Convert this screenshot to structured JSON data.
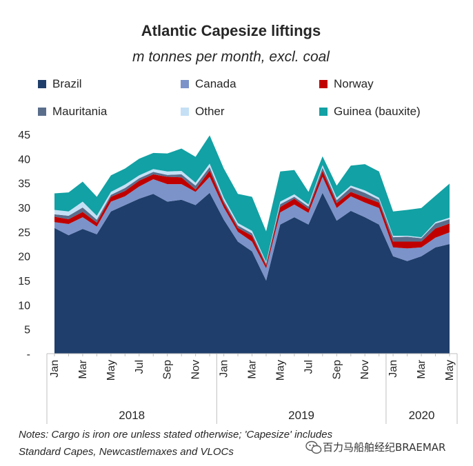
{
  "chart_data": {
    "type": "area",
    "stacked": true,
    "title": "Atlantic Capesize liftings",
    "subtitle": "m tonnes per month, excl. coal",
    "ylim": [
      0,
      45
    ],
    "yticks": [
      "-",
      "5",
      "10",
      "15",
      "20",
      "25",
      "30",
      "35",
      "40",
      "45"
    ],
    "x_tick_labels": [
      "Jan",
      "Mar",
      "May",
      "Jul",
      "Sep",
      "Nov",
      "Jan",
      "Mar",
      "May",
      "Jul",
      "Sep",
      "Nov",
      "Jan",
      "Mar",
      "May"
    ],
    "x_tick_months": [
      0,
      2,
      4,
      6,
      8,
      10,
      12,
      14,
      16,
      18,
      20,
      22,
      24,
      26,
      28
    ],
    "years": [
      {
        "label": "2018",
        "start": 0,
        "end": 12
      },
      {
        "label": "2019",
        "start": 12,
        "end": 24
      },
      {
        "label": "2020",
        "start": 24,
        "end": 29
      }
    ],
    "x": [
      "2018-01",
      "2018-02",
      "2018-03",
      "2018-04",
      "2018-05",
      "2018-06",
      "2018-07",
      "2018-08",
      "2018-09",
      "2018-10",
      "2018-11",
      "2018-12",
      "2019-01",
      "2019-02",
      "2019-03",
      "2019-04",
      "2019-05",
      "2019-06",
      "2019-07",
      "2019-08",
      "2019-09",
      "2019-10",
      "2019-11",
      "2019-12",
      "2020-01",
      "2020-02",
      "2020-03",
      "2020-04",
      "2020-05"
    ],
    "legend_position": "top",
    "series": [
      {
        "name": "Brazil",
        "color": "#1f3e6b",
        "values": [
          25.8,
          24.3,
          25.6,
          24.5,
          29.2,
          30.5,
          31.8,
          32.8,
          31.2,
          31.6,
          30.5,
          33.0,
          27.5,
          23.0,
          21.0,
          15.0,
          26.5,
          28.0,
          26.5,
          33.0,
          27.3,
          29.3,
          28.0,
          26.5,
          20.0,
          19.0,
          20.0,
          21.8,
          22.5
        ]
      },
      {
        "name": "Canada",
        "color": "#7b93c9",
        "values": [
          1.2,
          2.3,
          2.4,
          1.6,
          2.0,
          1.8,
          2.5,
          3.0,
          3.6,
          3.2,
          2.7,
          3.3,
          2.5,
          2.0,
          2.0,
          2.5,
          2.5,
          2.6,
          2.4,
          3.3,
          2.6,
          3.0,
          3.0,
          3.4,
          1.8,
          2.6,
          1.8,
          2.0,
          2.4
        ]
      },
      {
        "name": "Norway",
        "color": "#c00000",
        "values": [
          1.1,
          1.0,
          1.1,
          0.8,
          1.0,
          1.1,
          1.2,
          1.0,
          1.5,
          1.4,
          0.5,
          1.3,
          0.9,
          0.8,
          1.2,
          0.6,
          1.1,
          1.2,
          0.8,
          1.2,
          1.0,
          0.9,
          1.1,
          1.1,
          1.2,
          1.4,
          1.2,
          1.9,
          1.8
        ]
      },
      {
        "name": "Mauritania",
        "color": "#5a6e8c",
        "values": [
          0.5,
          0.7,
          0.9,
          0.6,
          0.4,
          0.6,
          0.5,
          0.5,
          0.4,
          0.6,
          0.8,
          0.7,
          0.5,
          0.5,
          0.5,
          0.4,
          0.6,
          0.4,
          0.5,
          0.7,
          0.6,
          0.9,
          0.9,
          0.6,
          0.9,
          1.0,
          0.7,
          1.0,
          0.9
        ]
      },
      {
        "name": "Other",
        "color": "#c5e0f5",
        "values": [
          0.9,
          0.9,
          1.2,
          0.8,
          0.6,
          0.7,
          0.6,
          0.6,
          0.7,
          0.7,
          0.6,
          0.7,
          0.6,
          0.5,
          0.5,
          0.3,
          0.5,
          0.5,
          0.4,
          0.5,
          0.5,
          0.4,
          0.5,
          0.4,
          0.3,
          0.2,
          0.2,
          0.3,
          0.3
        ]
      },
      {
        "name": "Guinea (bauxite)",
        "color": "#12a1a4",
        "values": [
          3.4,
          3.9,
          4.1,
          3.9,
          3.4,
          3.3,
          3.4,
          3.3,
          3.7,
          4.6,
          5.3,
          5.8,
          6.0,
          6.0,
          7.0,
          6.3,
          6.2,
          5.0,
          2.6,
          1.8,
          2.5,
          4.1,
          5.4,
          5.4,
          5.0,
          5.3,
          6.0,
          5.4,
          7.0
        ]
      }
    ]
  },
  "notes": {
    "line1": "Notes: Cargo is iron ore unless stated otherwise; 'Capesize' includes",
    "line2": "Standard Capes, Newcastlemaxes and VLOCs"
  },
  "watermark": {
    "icon": "wechat-icon",
    "text": "百力马船舶经纪BRAEMAR"
  }
}
